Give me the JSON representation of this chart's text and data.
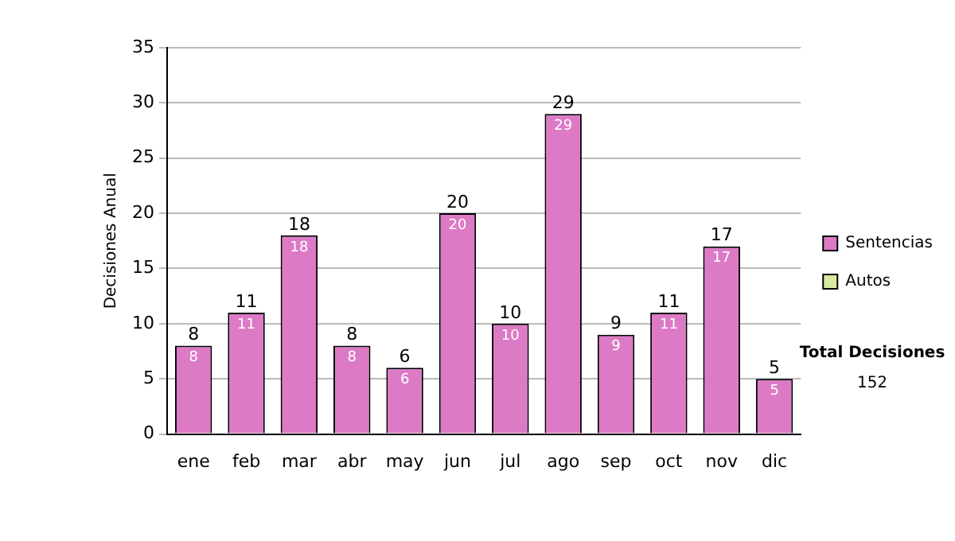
{
  "chart_data": {
    "type": "bar",
    "ylabel": "Decisiones Anual",
    "categories": [
      "ene",
      "feb",
      "mar",
      "abr",
      "may",
      "jun",
      "jul",
      "ago",
      "sep",
      "oct",
      "nov",
      "dic"
    ],
    "series": [
      {
        "name": "Sentencias",
        "color": "#dd7ac6",
        "values": [
          8,
          11,
          18,
          8,
          6,
          20,
          10,
          29,
          9,
          11,
          17,
          5
        ],
        "value_labels": [
          "8",
          "11",
          "18",
          "8",
          "6",
          "20",
          "10",
          "29",
          "9",
          "11",
          "17",
          "5"
        ]
      },
      {
        "name": "Autos",
        "color": "#d9eba0",
        "values": [
          0,
          0,
          0,
          0,
          0,
          0,
          0,
          0,
          0,
          0,
          0,
          0
        ]
      }
    ],
    "stacked": true,
    "totals": [
      "8",
      "11",
      "18",
      "8",
      "6",
      "20",
      "10",
      "29",
      "9",
      "11",
      "17",
      "5"
    ],
    "ylim": [
      0,
      35
    ],
    "yticks": [
      0,
      5,
      10,
      15,
      20,
      25,
      30,
      35
    ],
    "grid": "y",
    "legend": "right",
    "annotations": [
      "Total Decisiones",
      "152"
    ]
  }
}
